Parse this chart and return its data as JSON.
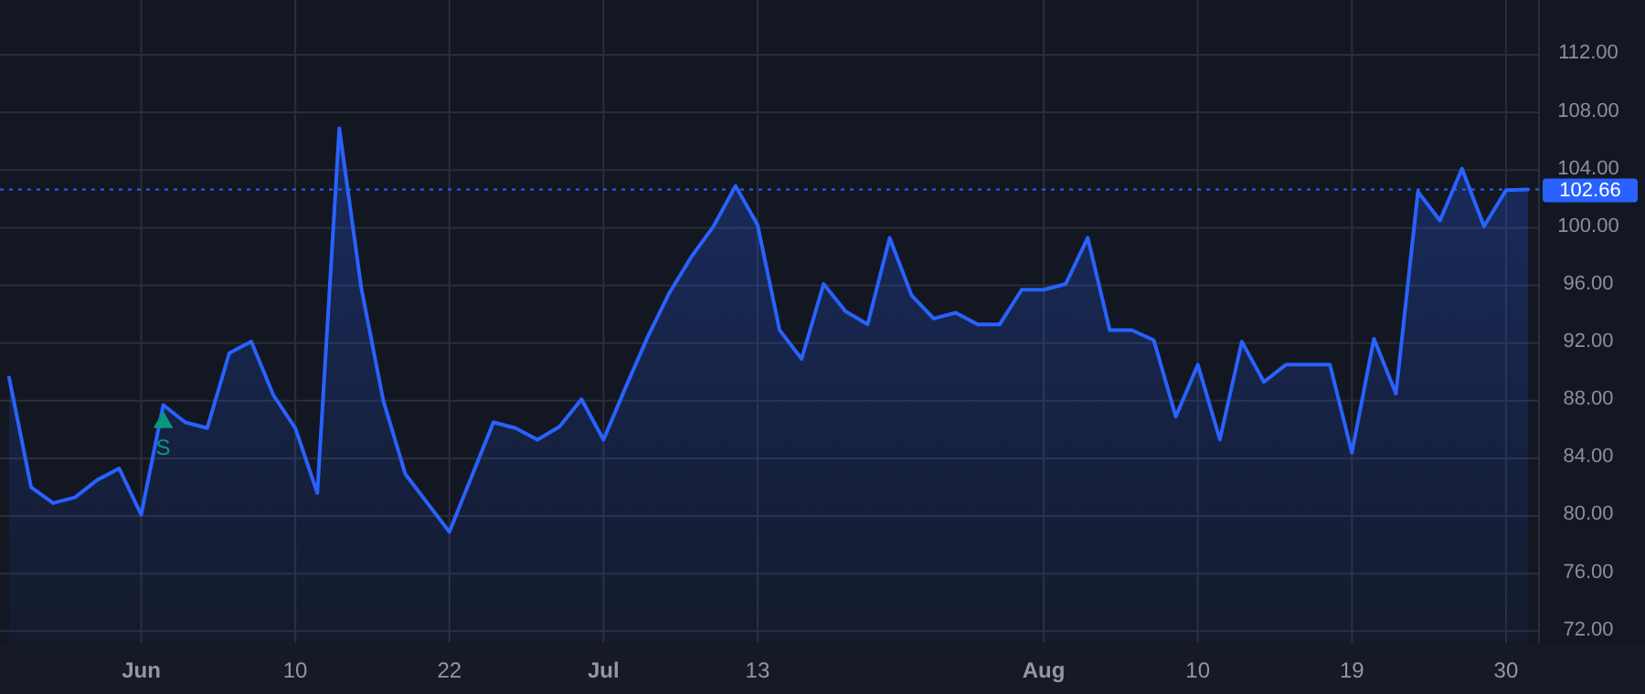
{
  "chart_data": {
    "type": "area",
    "categories": [
      null,
      null,
      null,
      null,
      null,
      null,
      "Jun",
      null,
      null,
      null,
      null,
      null,
      null,
      "10",
      null,
      null,
      null,
      null,
      null,
      null,
      "22",
      null,
      null,
      null,
      null,
      null,
      null,
      "Jul",
      null,
      null,
      null,
      null,
      null,
      null,
      "13",
      null,
      null,
      null,
      null,
      null,
      null,
      null,
      null,
      null,
      null,
      null,
      null,
      "Aug",
      null,
      null,
      null,
      null,
      null,
      null,
      "10",
      null,
      null,
      null,
      null,
      null,
      null,
      "19",
      null,
      null,
      null,
      null,
      null,
      null,
      "30",
      null
    ],
    "series": [
      {
        "color": "#2962ff",
        "values": [
          89.6,
          82.0,
          80.9,
          81.3,
          82.5,
          83.3,
          80.1,
          87.7,
          86.5,
          86.1,
          91.3,
          92.1,
          88.4,
          86.1,
          81.6,
          106.9,
          95.8,
          88.0,
          82.9,
          80.9,
          78.9,
          82.7,
          86.5,
          86.1,
          85.3,
          86.2,
          88.1,
          85.3,
          88.9,
          92.4,
          95.5,
          98.0,
          100.1,
          102.9,
          100.2,
          92.9,
          90.9,
          96.1,
          94.2,
          93.3,
          99.3,
          95.3,
          93.7,
          94.1,
          93.3,
          93.3,
          95.7,
          95.7,
          96.1,
          99.3,
          92.9,
          92.9,
          92.2,
          86.9,
          90.5,
          85.3,
          92.1,
          89.3,
          90.5,
          90.5,
          90.5,
          84.4,
          92.3,
          88.5,
          102.5,
          100.5,
          104.1,
          100.1,
          102.6,
          102.66
        ]
      },
      {
        "name": "S",
        "type": "scatter",
        "marker": "triangle",
        "color": "#089981",
        "values": [
          null,
          null,
          null,
          null,
          null,
          null,
          null,
          86.5,
          null,
          null,
          null,
          null,
          null,
          null,
          null,
          null,
          null,
          null,
          null,
          null,
          null,
          null,
          null,
          null,
          null,
          null,
          null,
          null,
          null,
          null,
          null,
          null,
          null,
          null,
          null,
          null,
          null,
          null,
          null,
          null,
          null,
          null,
          null,
          null,
          null,
          null,
          null,
          null,
          null,
          null,
          null,
          null,
          null,
          null,
          null,
          null,
          null,
          null,
          null,
          null,
          null,
          null,
          null,
          null,
          null,
          null,
          null,
          null,
          null,
          null
        ]
      }
    ],
    "ylim": [
      71.2,
      115.8
    ],
    "yticks": [
      {
        "value": 72,
        "label": "72.00"
      },
      {
        "value": 76,
        "label": "76.00"
      },
      {
        "value": 80,
        "label": "80.00"
      },
      {
        "value": 84,
        "label": "84.00"
      },
      {
        "value": 88,
        "label": "88.00"
      },
      {
        "value": 92,
        "label": "92.00"
      },
      {
        "value": 96,
        "label": "96.00"
      },
      {
        "value": 100,
        "label": "100.00"
      },
      {
        "value": 104,
        "label": "104.00"
      },
      {
        "value": 108,
        "label": "108.00"
      },
      {
        "value": 112,
        "label": "112.00"
      }
    ],
    "ref_lines": [
      {
        "axis": "y",
        "value": 102.66,
        "label": "102.66",
        "color": "#2962ff",
        "line_style": "dotted"
      }
    ],
    "grid": true
  }
}
